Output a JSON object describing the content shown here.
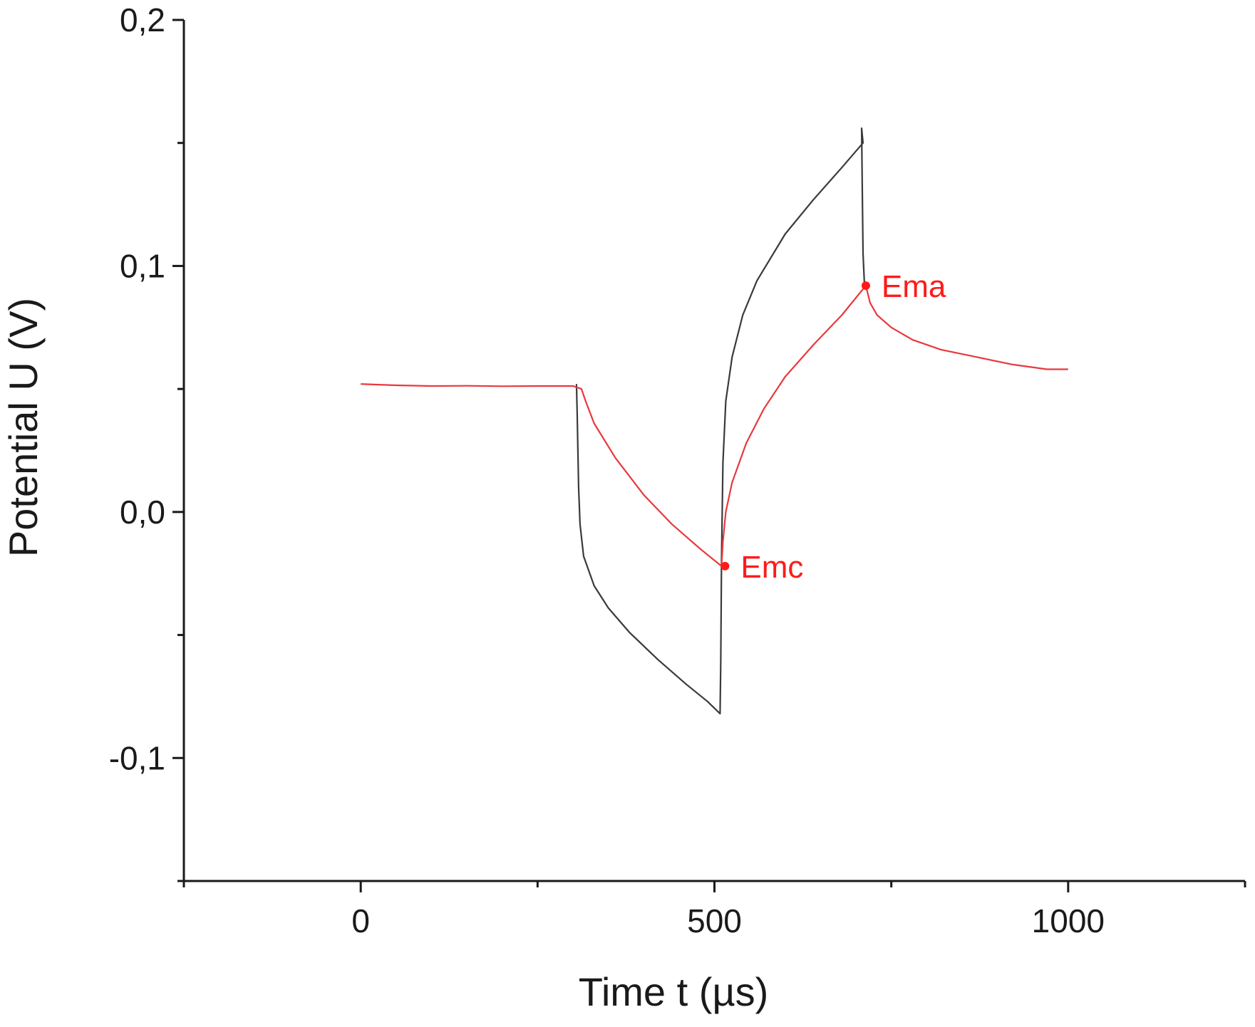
{
  "chart_data": {
    "type": "line",
    "title": "",
    "xlabel": "Time t (µs)",
    "ylabel": "Potential U (V)",
    "xlim": [
      -250,
      1250
    ],
    "ylim": [
      -0.15,
      0.2
    ],
    "x_ticks": [
      0,
      500,
      1000
    ],
    "x_tick_labels": [
      "0",
      "500",
      "1000"
    ],
    "x_minor_ticks": [
      -250,
      250,
      750,
      1250
    ],
    "y_ticks": [
      -0.1,
      0.0,
      0.1,
      0.2
    ],
    "y_tick_labels": [
      "-0,1",
      "0,0",
      "0,1",
      "0,2"
    ],
    "y_minor_ticks": [
      -0.15,
      -0.05,
      0.05,
      0.15
    ],
    "grid": false,
    "series": [
      {
        "color": "#3a3a3a",
        "points": [
          [
            305,
            0.052
          ],
          [
            306,
            0.04
          ],
          [
            308,
            0.01
          ],
          [
            310,
            -0.005
          ],
          [
            315,
            -0.018
          ],
          [
            330,
            -0.03
          ],
          [
            350,
            -0.039
          ],
          [
            380,
            -0.049
          ],
          [
            420,
            -0.06
          ],
          [
            460,
            -0.07
          ],
          [
            490,
            -0.077
          ],
          [
            508,
            -0.082
          ],
          [
            509,
            -0.06
          ],
          [
            510,
            -0.02
          ],
          [
            512,
            0.02
          ],
          [
            516,
            0.045
          ],
          [
            525,
            0.063
          ],
          [
            540,
            0.08
          ],
          [
            560,
            0.094
          ],
          [
            600,
            0.113
          ],
          [
            640,
            0.127
          ],
          [
            680,
            0.14
          ],
          [
            710,
            0.15
          ],
          [
            708,
            0.156
          ],
          [
            709,
            0.13
          ],
          [
            710,
            0.105
          ],
          [
            712,
            0.093
          ]
        ]
      },
      {
        "color": "#e8383d",
        "points": [
          [
            0,
            0.052
          ],
          [
            50,
            0.0515
          ],
          [
            100,
            0.0512
          ],
          [
            150,
            0.0513
          ],
          [
            200,
            0.0511
          ],
          [
            250,
            0.0512
          ],
          [
            300,
            0.0512
          ],
          [
            312,
            0.05
          ],
          [
            318,
            0.045
          ],
          [
            330,
            0.036
          ],
          [
            360,
            0.022
          ],
          [
            400,
            0.007
          ],
          [
            440,
            -0.005
          ],
          [
            480,
            -0.015
          ],
          [
            510,
            -0.022
          ],
          [
            512,
            -0.012
          ],
          [
            516,
            0.0
          ],
          [
            525,
            0.012
          ],
          [
            545,
            0.028
          ],
          [
            570,
            0.042
          ],
          [
            600,
            0.055
          ],
          [
            640,
            0.068
          ],
          [
            680,
            0.08
          ],
          [
            714,
            0.092
          ],
          [
            720,
            0.085
          ],
          [
            730,
            0.08
          ],
          [
            750,
            0.075
          ],
          [
            780,
            0.07
          ],
          [
            820,
            0.066
          ],
          [
            870,
            0.063
          ],
          [
            920,
            0.06
          ],
          [
            970,
            0.058
          ],
          [
            1000,
            0.058
          ]
        ]
      }
    ],
    "annotations": [
      {
        "label": "Emc",
        "x": 515,
        "y": -0.022,
        "color": "#ff1a1a"
      },
      {
        "label": "Ema",
        "x": 714,
        "y": 0.092,
        "color": "#ff1a1a"
      }
    ]
  }
}
